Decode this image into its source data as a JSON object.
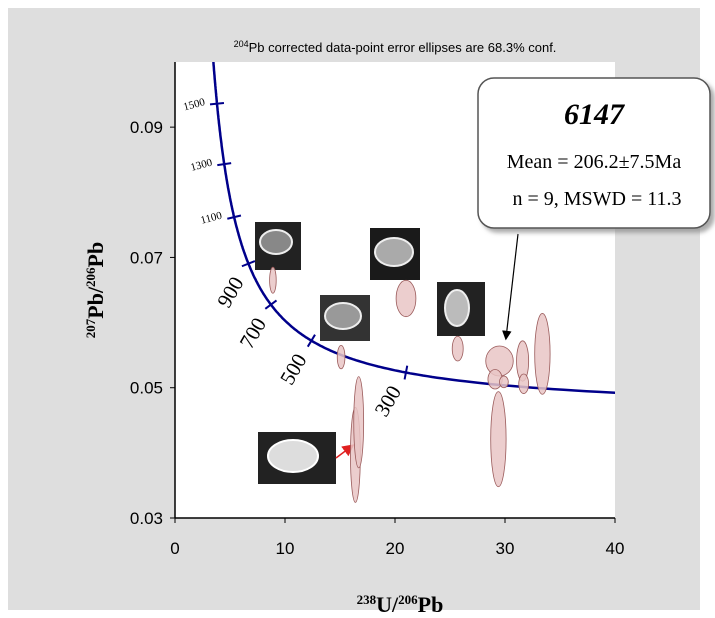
{
  "chart_data": {
    "type": "concordia",
    "title": [
      "204",
      "Pb corrected  data-point error ellipses are 68.3% conf."
    ],
    "x_label": [
      "238",
      "U/",
      "206",
      "Pb"
    ],
    "y_label": [
      "207",
      "Pb/",
      "206",
      "Pb"
    ],
    "xlim": [
      0,
      40
    ],
    "xticks": [
      0,
      10,
      20,
      30,
      40
    ],
    "ylim": [
      0.03,
      0.1
    ],
    "yticks": [
      {
        "value": 0.03,
        "label": "0.03"
      },
      {
        "value": 0.05,
        "label": "0.05"
      },
      {
        "value": 0.07,
        "label": "0.07"
      },
      {
        "value": 0.09,
        "label": "0.09"
      }
    ],
    "concordia_ages": [
      1500,
      1300,
      1100,
      900,
      700,
      500,
      300
    ],
    "curve_color": "#00008b",
    "ellipse_color": "#e9c6c6",
    "x": [
      8.9,
      15.1,
      16.4,
      16.7,
      21.0,
      25.7,
      29.5,
      29.4,
      29.1,
      31.6,
      31.7,
      33.4,
      29.9
    ],
    "x_err": [
      0.3,
      0.35,
      0.45,
      0.45,
      0.9,
      0.5,
      1.25,
      0.7,
      0.65,
      0.55,
      0.45,
      0.7,
      0.4
    ],
    "values": [
      0.0665,
      0.0547,
      0.0397,
      0.0447,
      0.0637,
      0.056,
      0.0541,
      0.0421,
      0.0513,
      0.0541,
      0.0506,
      0.0552,
      0.0509
    ],
    "y_err": [
      0.002,
      0.0018,
      0.0073,
      0.007,
      0.0028,
      0.0019,
      0.0023,
      0.0073,
      0.0015,
      0.0031,
      0.0015,
      0.0062,
      0.0009
    ],
    "annotation": {
      "sample": "6147",
      "mean": "Mean = 206.2±7.5Ma",
      "n_mswd": "n = 9, MSWD = 11.3"
    }
  }
}
